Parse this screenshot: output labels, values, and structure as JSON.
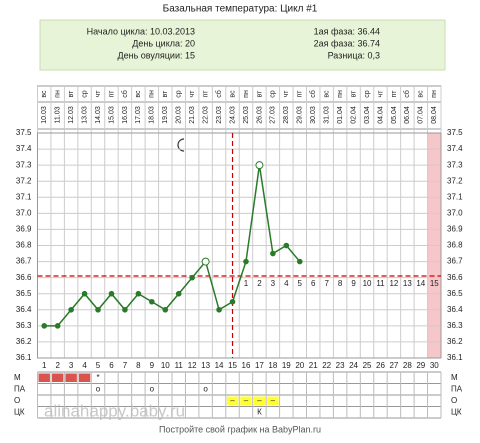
{
  "title": "Базальная температура: Цикл #1",
  "info": {
    "left": [
      "Начало цикла: 10.03.2013",
      "День цикла: 20",
      "День овуляции: 15"
    ],
    "right": [
      "1ая фаза: 36.44",
      "2ая фаза: 36.74",
      "Разница: 0,3"
    ]
  },
  "chart_data": {
    "type": "line",
    "categories": [
      1,
      2,
      3,
      4,
      5,
      6,
      7,
      8,
      9,
      10,
      11,
      12,
      13,
      14,
      15,
      16,
      17,
      18,
      19,
      20,
      21,
      22,
      23,
      24,
      25,
      26,
      27,
      28,
      29,
      30
    ],
    "dates": [
      "10.03",
      "11.03",
      "12.03",
      "13.03",
      "14.03",
      "15.03",
      "16.03",
      "17.03",
      "18.03",
      "19.03",
      "20.03",
      "21.03",
      "22.03",
      "23.03",
      "24.03",
      "25.03",
      "26.03",
      "27.03",
      "28.03",
      "29.03",
      "30.03",
      "31.03",
      "01.04",
      "02.04",
      "03.04",
      "04.04",
      "05.04",
      "06.04",
      "07.04",
      "08.04"
    ],
    "weekdays": [
      "вс",
      "пн",
      "вт",
      "ср",
      "чт",
      "пт",
      "сб",
      "вс",
      "пн",
      "вт",
      "ср",
      "чт",
      "пт",
      "сб",
      "вс",
      "пн",
      "вт",
      "ср",
      "чт",
      "пт",
      "сб",
      "вс",
      "пн",
      "вт",
      "ср",
      "чт",
      "пт",
      "сб",
      "вс",
      "пн"
    ],
    "series": [
      {
        "color": "#2a7a2a",
        "values": [
          36.3,
          36.3,
          36.4,
          36.5,
          36.4,
          36.5,
          36.4,
          36.5,
          36.45,
          36.4,
          36.5,
          36.6,
          36.7,
          36.4,
          36.45,
          36.7,
          37.3,
          36.75,
          36.8,
          36.7,
          null,
          null,
          null,
          null,
          null,
          null,
          null,
          null,
          null,
          null
        ]
      }
    ],
    "open_markers": [
      13,
      17
    ],
    "coverline": 36.61,
    "ovulation_day": 15,
    "luteal_days": [
      1,
      2,
      3,
      4,
      5,
      6,
      7,
      8,
      9,
      10,
      11,
      12,
      13,
      14,
      15
    ],
    "highlight_day": 30,
    "ylim": [
      36.1,
      37.5
    ],
    "yticks": [
      36.1,
      36.2,
      36.3,
      36.4,
      36.5,
      36.6,
      36.7,
      36.8,
      36.9,
      {
        "value": 37.0,
        "label": "37.0"
      },
      37.1,
      37.2,
      37.3,
      37.4,
      37.5
    ],
    "grid": true,
    "rows": [
      {
        "label": "М",
        "filled": [
          1,
          2,
          3,
          4
        ],
        "fill_color": "#d9534f",
        "texts": [
          {
            "day": 5,
            "text": "*"
          }
        ]
      },
      {
        "label": "ПА",
        "filled": [],
        "texts": [
          {
            "day": 5,
            "text": "о"
          },
          {
            "day": 9,
            "text": "о"
          },
          {
            "day": 13,
            "text": "о"
          }
        ]
      },
      {
        "label": "О",
        "filled": [
          15,
          16,
          17,
          18
        ],
        "fill_color": "#ffff33",
        "texts": [
          {
            "day": 15,
            "text": "–"
          },
          {
            "day": 16,
            "text": "–"
          },
          {
            "day": 17,
            "text": "–"
          },
          {
            "day": 18,
            "text": "–"
          }
        ]
      },
      {
        "label": "ЦК",
        "filled": [],
        "texts": [
          {
            "day": 17,
            "text": "К"
          }
        ]
      }
    ]
  },
  "watermark": "alinahappy.baby.ru",
  "footer": "Постройте свой график на BabyPlan.ru"
}
